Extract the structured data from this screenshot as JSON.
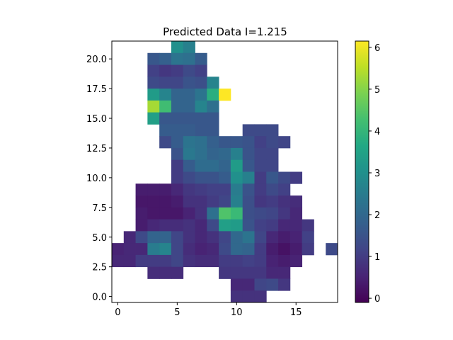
{
  "chart_data": {
    "type": "heatmap",
    "title": "Predicted Data I=1.215",
    "xlabel": "",
    "ylabel": "",
    "xlim": [
      -0.5,
      18.5
    ],
    "ylim": [
      -0.5,
      21.5
    ],
    "x_ticks": [
      0,
      5,
      10,
      15
    ],
    "y_ticks": [
      0.0,
      2.5,
      5.0,
      7.5,
      10.0,
      12.5,
      15.0,
      17.5,
      20.0
    ],
    "x_tick_labels": [
      "0",
      "5",
      "10",
      "15"
    ],
    "y_tick_labels": [
      "0.0",
      "2.5",
      "5.0",
      "7.5",
      "10.0",
      "12.5",
      "15.0",
      "17.5",
      "20.0"
    ],
    "colormap": "viridis",
    "color_range": [
      -0.1,
      6.15
    ],
    "colorbar_ticks": [
      0,
      1,
      2,
      3,
      4,
      5,
      6
    ],
    "colorbar_tick_labels": [
      "0",
      "1",
      "2",
      "3",
      "4",
      "5",
      "6"
    ],
    "grid": false,
    "rows": [
      {
        "y": 21,
        "x0": 5,
        "values": [
          3.0,
          2.6
        ]
      },
      {
        "y": 20,
        "x0": 3,
        "values": [
          1.6,
          1.8,
          2.3,
          2.2,
          1.7
        ]
      },
      {
        "y": 19,
        "x0": 3,
        "values": [
          1.1,
          0.9,
          1.0,
          1.3,
          1.1
        ]
      },
      {
        "y": 18,
        "x0": 3,
        "values": [
          1.3,
          1.2,
          1.2,
          1.5,
          1.4,
          2.7
        ]
      },
      {
        "y": 17,
        "x0": 3,
        "values": [
          3.3,
          2.7,
          1.9,
          1.9,
          2.3,
          3.8,
          6.15
        ]
      },
      {
        "y": 16,
        "x0": 3,
        "values": [
          5.3,
          4.2,
          1.9,
          1.9,
          2.7,
          2.2
        ]
      },
      {
        "y": 15,
        "x0": 3,
        "values": [
          3.4,
          1.6,
          1.6,
          1.6,
          1.6,
          1.6
        ]
      },
      {
        "y": 14,
        "x0": 4,
        "values": [
          1.7,
          1.7,
          1.7,
          1.6,
          1.6
        ],
        "x0b": 11,
        "values_b": [
          1.3,
          1.3,
          1.3
        ]
      },
      {
        "y": 13,
        "x0": 4,
        "values": [
          1.3,
          1.7,
          2.3,
          2.2,
          1.8,
          1.6,
          1.6,
          1.5,
          1.1,
          1.3,
          1.2
        ]
      },
      {
        "y": 12,
        "x0": 5,
        "values": [
          1.5,
          2.4,
          2.2,
          1.9,
          2.0,
          2.6,
          1.5,
          1.2,
          1.2
        ]
      },
      {
        "y": 11,
        "x0": 5,
        "values": [
          1.0,
          1.7,
          2.1,
          2.1,
          1.9,
          3.3,
          1.6,
          1.2,
          1.2
        ]
      },
      {
        "y": 10,
        "x0": 5,
        "values": [
          1.0,
          1.3,
          1.5,
          1.5,
          1.7,
          3.0,
          2.6,
          1.0,
          1.6,
          1.3,
          1.0
        ]
      },
      {
        "y": 9,
        "x0": 2,
        "values": [
          0.4,
          0.4,
          0.4,
          0.6,
          0.9,
          1.0,
          1.1,
          1.1,
          2.5,
          1.5,
          1.0,
          1.3,
          1.1
        ]
      },
      {
        "y": 8,
        "x0": 2,
        "values": [
          0.3,
          0.3,
          0.3,
          0.4,
          0.8,
          0.8,
          1.0,
          1.2,
          2.6,
          1.4,
          0.9,
          1.0,
          0.8,
          0.7
        ]
      },
      {
        "y": 7,
        "x0": 2,
        "values": [
          0.4,
          0.3,
          0.3,
          0.3,
          0.5,
          0.8,
          2.2,
          4.4,
          4.1,
          1.4,
          1.3,
          1.2,
          0.9,
          0.6
        ]
      },
      {
        "y": 6,
        "x0": 2,
        "values": [
          0.4,
          0.6,
          0.7,
          0.7,
          0.8,
          0.6,
          1.3,
          3.4,
          3.3,
          1.5,
          1.1,
          1.0,
          0.6,
          0.6,
          0.9
        ]
      },
      {
        "y": 5,
        "x0": 1,
        "values": [
          0.6,
          1.3,
          1.9,
          1.9,
          1.2,
          0.8,
          0.6,
          0.8,
          1.2,
          2.0,
          2.3,
          1.2,
          0.6,
          0.4,
          0.5,
          1.1
        ]
      },
      {
        "y": 4,
        "x0": 0,
        "values": [
          0.5,
          0.6,
          0.6,
          2.5,
          2.7,
          1.2,
          0.7,
          0.5,
          0.6,
          1.3,
          2.0,
          1.9,
          1.0,
          0.4,
          0.2,
          0.4,
          1.0
        ],
        "x0b": 18,
        "values_b": [
          1.3
        ]
      },
      {
        "y": 3,
        "x0": 0,
        "values": [
          0.6,
          0.6,
          1.0,
          1.0,
          1.0,
          1.2,
          0.8,
          0.7,
          0.7,
          1.0,
          1.0,
          1.1,
          1.0,
          0.5,
          0.4,
          0.5
        ]
      },
      {
        "y": 2,
        "x0": 3,
        "values": [
          0.7,
          0.7,
          0.7
        ],
        "x0b": 9,
        "values_b": [
          0.9,
          0.9,
          0.9,
          0.9,
          0.6,
          0.6
        ]
      },
      {
        "y": 1,
        "x0": 10,
        "values": [
          0.6,
          0.6,
          1.2,
          1.3,
          0.9
        ]
      },
      {
        "y": 0,
        "x0": 10,
        "values": [
          0.8,
          0.8,
          0.8
        ]
      }
    ]
  }
}
